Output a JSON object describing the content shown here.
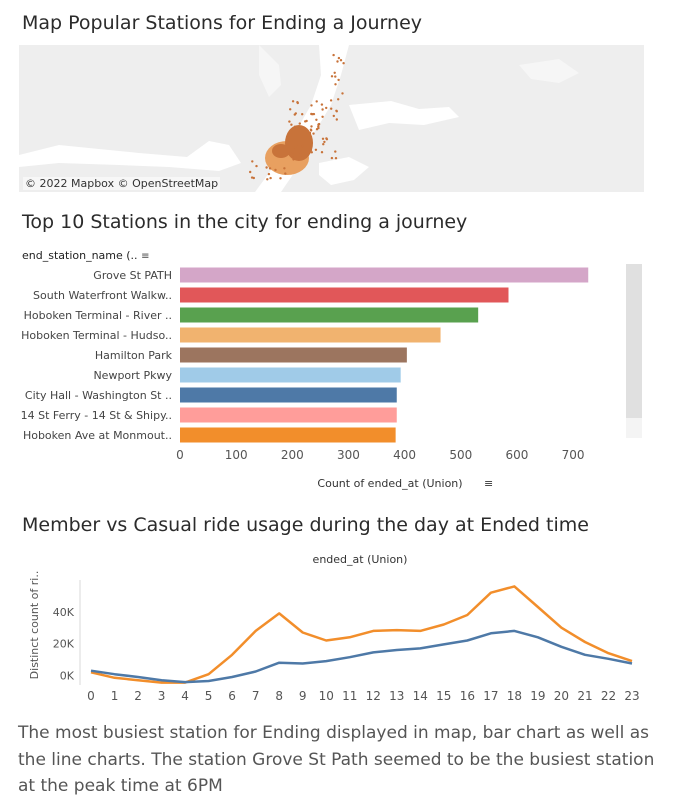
{
  "titles": {
    "map": "Map Popular Stations for Ending a Journey",
    "bar": "Top 10 Stations in the city for ending a journey",
    "line": "Member vs Casual ride usage  during the day at Ended time"
  },
  "map": {
    "attribution": "© 2022 Mapbox © OpenStreetMap",
    "colors": {
      "water": "#ffffff",
      "land": "#eeeeee",
      "dots": "#c8733a",
      "cluster": "#e8a060"
    }
  },
  "caption": "The most busiest station for Ending displayed in map, bar chart as well as the line charts. The station Grove St Path seemed to be the busiest station at the peak time at 6PM",
  "chart_data": [
    {
      "type": "bar",
      "orientation": "horizontal",
      "row_header": "end_station_name (..",
      "xlabel": "Count of ended_at (Union)",
      "xlim": [
        0,
        780
      ],
      "xticks": [
        0,
        100,
        200,
        300,
        400,
        500,
        600,
        700
      ],
      "categories": [
        "Grove St PATH",
        "South Waterfront Walkw..",
        "Hoboken Terminal - River ..",
        "Hoboken Terminal - Hudso..",
        "Hamilton Park",
        "Newport Pkwy",
        "City Hall - Washington St ..",
        "14 St Ferry - 14 St & Shipy..",
        "Hoboken Ave at Monmout.."
      ],
      "values": [
        727,
        585,
        531,
        464,
        404,
        393,
        386,
        386,
        384
      ],
      "colors": [
        "#d4a6c8",
        "#e15759",
        "#59a14f",
        "#f1b36f",
        "#9c755f",
        "#a0cbe8",
        "#4e79a7",
        "#ff9d9a",
        "#f28e2b"
      ],
      "scrollbar": true
    },
    {
      "type": "line",
      "title": "ended_at (Union)",
      "ylabel": "Distinct count of ri..",
      "x": [
        0,
        1,
        2,
        3,
        4,
        5,
        6,
        7,
        8,
        9,
        10,
        11,
        12,
        13,
        14,
        15,
        16,
        17,
        18,
        19,
        20,
        21,
        22,
        23
      ],
      "ylim": [
        -6000,
        60000
      ],
      "yticks": [
        0,
        20000,
        40000
      ],
      "ytick_labels": [
        "0K",
        "20K",
        "40K"
      ],
      "series": [
        {
          "color": "#f28e2b",
          "values": [
            2000,
            -1500,
            -3000,
            -4500,
            -4500,
            800,
            13000,
            28000,
            39000,
            27000,
            22000,
            24000,
            28000,
            28500,
            28000,
            32000,
            38000,
            52000,
            56000,
            43000,
            30000,
            21000,
            14000,
            9000
          ]
        },
        {
          "color": "#4e79a7",
          "values": [
            3000,
            800,
            -1000,
            -3000,
            -4200,
            -3500,
            -1000,
            2500,
            8000,
            7500,
            9000,
            11500,
            14500,
            16000,
            17000,
            19500,
            22000,
            26500,
            28000,
            24000,
            18000,
            13000,
            10500,
            7500
          ]
        }
      ]
    }
  ]
}
